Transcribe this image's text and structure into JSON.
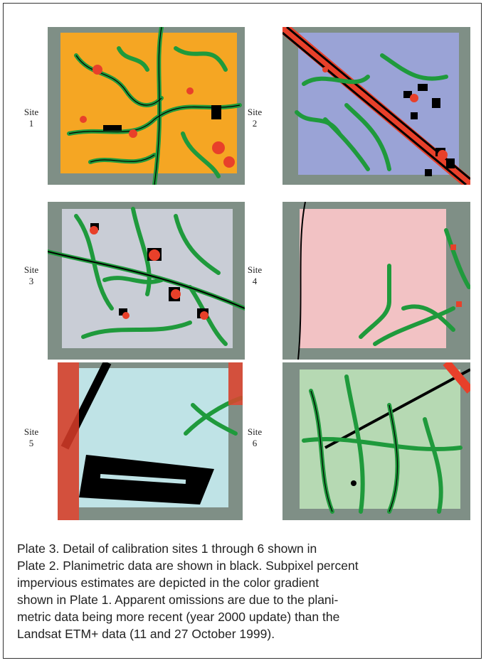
{
  "sites": [
    {
      "word": "Site",
      "num": "1",
      "fill": "#f5a623"
    },
    {
      "word": "Site",
      "num": "2",
      "fill": "#9aa3d6"
    },
    {
      "word": "Site",
      "num": "3",
      "fill": "#c9cdd6"
    },
    {
      "word": "Site",
      "num": "4",
      "fill": "#f2c2c4"
    },
    {
      "word": "Site",
      "num": "5",
      "fill": "#bfe3e6"
    },
    {
      "word": "Site",
      "num": "6",
      "fill": "#b6d9b3"
    }
  ],
  "caption": {
    "line1": "Plate 3.  Detail of calibration sites 1 through 6 shown in",
    "line2": "Plate 2. Planimetric data are shown in black. Subpixel percent",
    "line3": "impervious estimates are depicted in the color gradient",
    "line4": "shown in Plate 1. Apparent omissions are due to the plani-",
    "line5": "metric data being more recent (year 2000 update) than the",
    "line6": "Landsat ETM+ data (11 and 27 October 1999)."
  },
  "colors": {
    "impervious_road": "#1f9a3c",
    "impervious_high": "#e8402a",
    "planimetric": "#000000",
    "landsat_bg": "#7f8f86"
  }
}
